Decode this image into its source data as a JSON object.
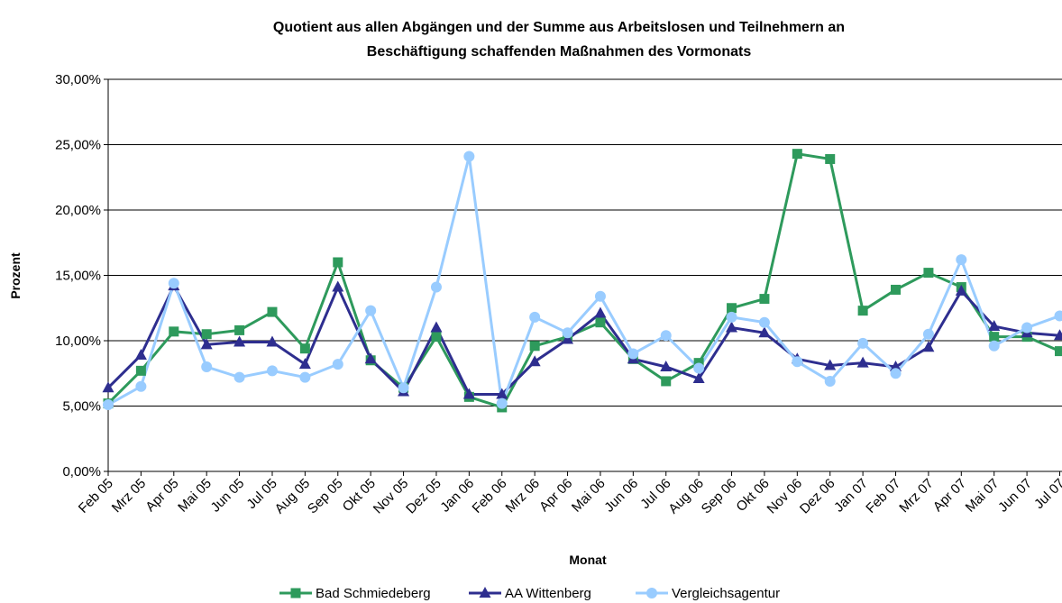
{
  "chart_data": {
    "type": "line",
    "title_lines": [
      "Quotient aus allen Abgängen und der Summe aus Arbeitslosen und Teilnehmern an",
      "Beschäftigung schaffenden Maßnahmen des Vormonats"
    ],
    "x_label": "Monat",
    "y_label": "Prozent",
    "categories": [
      "Feb 05",
      "Mrz 05",
      "Apr 05",
      "Mai 05",
      "Jun 05",
      "Jul 05",
      "Aug 05",
      "Sep 05",
      "Okt 05",
      "Nov 05",
      "Dez 05",
      "Jan 06",
      "Feb 06",
      "Mrz 06",
      "Apr 06",
      "Mai 06",
      "Jun 06",
      "Jul 06",
      "Aug 06",
      "Sep 06",
      "Okt 06",
      "Nov 06",
      "Dez 06",
      "Jan 07",
      "Feb 07",
      "Mrz 07",
      "Apr 07",
      "Mai 07",
      "Jun 07",
      "Jul 07"
    ],
    "series": [
      {
        "name": "Bad Schmiedeberg",
        "color": "#2e9a5c",
        "marker": "square",
        "values": [
          5.2,
          7.7,
          10.7,
          10.5,
          10.8,
          12.2,
          9.4,
          16.0,
          8.5,
          6.4,
          10.3,
          5.7,
          4.9,
          9.6,
          10.3,
          11.4,
          8.6,
          6.9,
          8.3,
          12.5,
          13.2,
          24.3,
          23.9,
          12.3,
          13.9,
          15.2,
          14.1,
          10.3,
          10.3,
          9.2
        ]
      },
      {
        "name": "AA Wittenberg",
        "color": "#2e2e8f",
        "marker": "triangle",
        "values": [
          6.4,
          8.9,
          14.2,
          9.7,
          9.9,
          9.9,
          8.2,
          14.1,
          8.6,
          6.1,
          11.0,
          5.9,
          5.9,
          8.4,
          10.1,
          12.1,
          8.6,
          8.0,
          7.1,
          11.0,
          10.6,
          8.6,
          8.1,
          8.3,
          8.0,
          9.5,
          13.8,
          11.1,
          10.6,
          10.4
        ]
      },
      {
        "name": "Vergleichsagentur",
        "color": "#99ccff",
        "marker": "circle",
        "values": [
          5.1,
          6.5,
          14.4,
          8.0,
          7.2,
          7.7,
          7.2,
          8.2,
          12.3,
          6.4,
          14.1,
          24.1,
          5.2,
          11.8,
          10.6,
          13.4,
          9.0,
          10.4,
          7.9,
          11.8,
          11.4,
          8.4,
          6.9,
          9.8,
          7.5,
          10.5,
          16.2,
          9.6,
          11.0,
          11.9
        ]
      }
    ],
    "ylim": [
      0,
      30
    ],
    "yticks": [
      {
        "value": 0,
        "label": "0,00%"
      },
      {
        "value": 5,
        "label": "5,00%"
      },
      {
        "value": 10,
        "label": "10,00%"
      },
      {
        "value": 15,
        "label": "15,00%"
      },
      {
        "value": 20,
        "label": "20,00%"
      },
      {
        "value": 25,
        "label": "25,00%"
      },
      {
        "value": 30,
        "label": "30,00%"
      }
    ],
    "grid": true,
    "legend": "bottom"
  }
}
